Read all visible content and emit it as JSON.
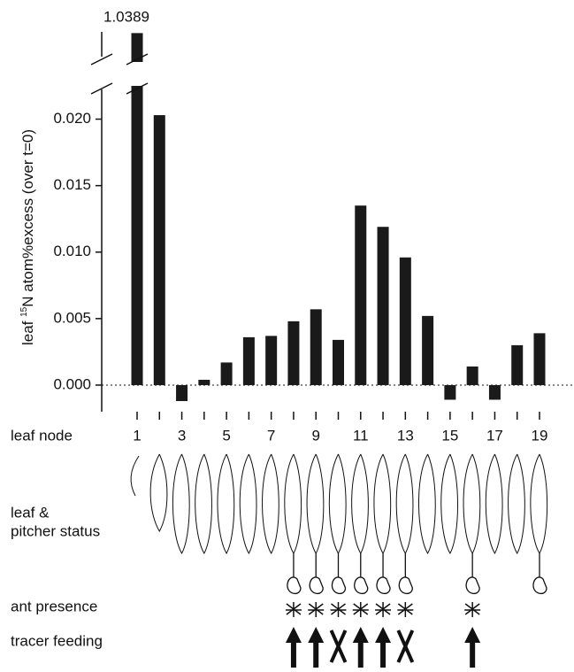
{
  "chart_data": {
    "type": "bar",
    "y_label": {
      "prefix": "leaf ",
      "superscript": "15",
      "suffix": "N atom%excess (over t=0)"
    },
    "x_label": "leaf node",
    "categories": [
      "1",
      null,
      "3",
      null,
      "5",
      null,
      "7",
      null,
      "9",
      null,
      "11",
      null,
      "13",
      null,
      "15",
      null,
      "17",
      null,
      "19"
    ],
    "values": [
      1.0389,
      0.0203,
      -0.0012,
      0.0004,
      0.0017,
      0.0036,
      0.0037,
      0.0048,
      0.0057,
      0.0034,
      0.0135,
      0.0119,
      0.0096,
      0.0052,
      -0.0011,
      0.0014,
      -0.0011,
      0.003,
      0.0039
    ],
    "color": "#1a1a1a",
    "ylim": [
      -0.002,
      0.0225
    ],
    "ylim_upper": [
      1.0365,
      1.039
    ],
    "axis_break": true,
    "yticks": [
      {
        "value": 0,
        "label": "0.000"
      },
      {
        "value": 0.005,
        "label": "0.005"
      },
      {
        "value": 0.01,
        "label": "0.010"
      },
      {
        "value": 0.015,
        "label": "0.015"
      },
      {
        "value": 0.02,
        "label": "0.020"
      }
    ],
    "zero_line": true,
    "rows": {
      "status_label": [
        "leaf &",
        "pitcher status"
      ],
      "ant_label": "ant presence",
      "feeding_label": "tracer feeding"
    },
    "pitcher_nodes": [
      8,
      9,
      10,
      11,
      12,
      13,
      16,
      19
    ],
    "ant_nodes": [
      8,
      9,
      10,
      11,
      12,
      13,
      16
    ],
    "fed_nodes": [
      8,
      9,
      11,
      12,
      16
    ],
    "unfed_nodes": [
      10,
      13
    ]
  }
}
